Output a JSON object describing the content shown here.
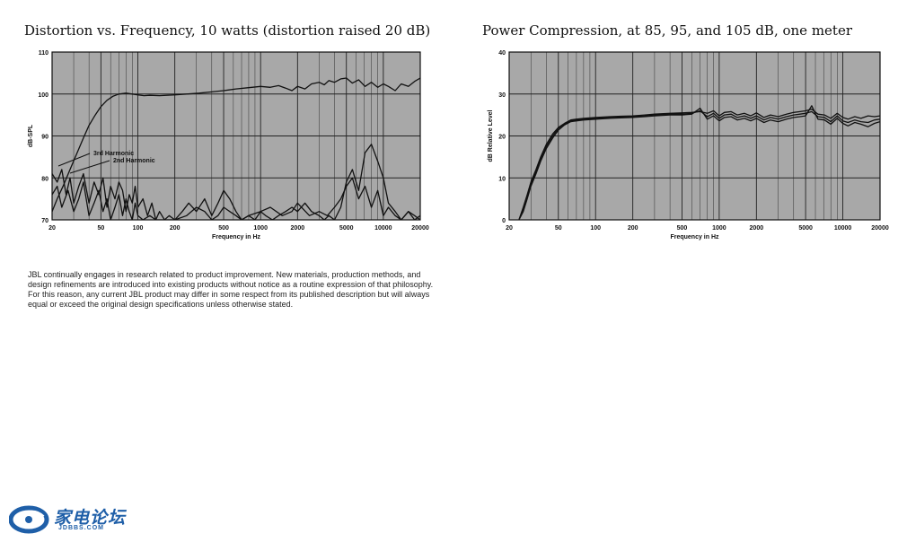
{
  "chart_data": [
    {
      "type": "line",
      "title": "Distortion vs. Frequency, 10 watts (distortion raised 20 dB)",
      "xlabel": "Frequency in Hz",
      "ylabel": "dB-SPL",
      "xscale": "log",
      "xlim": [
        20,
        20000
      ],
      "ylim": [
        70,
        110
      ],
      "xticks": [
        "20",
        "50",
        "100",
        "200",
        "500",
        "1000",
        "2000",
        "5000",
        "10000",
        "20000"
      ],
      "yticks": [
        "70",
        "80",
        "90",
        "100",
        "110"
      ],
      "grid": true,
      "background": "#a8a8a8",
      "annotations": [
        "3rd Harmonic",
        "2nd Harmonic"
      ],
      "series": [
        {
          "x": [
            20,
            22,
            25,
            28,
            32,
            36,
            40,
            45,
            50,
            56,
            63,
            70,
            80,
            90,
            100,
            112,
            125,
            150,
            200,
            250,
            315,
            400,
            500,
            630,
            800,
            1000,
            1200,
            1400,
            1600,
            1800,
            2000,
            2300,
            2600,
            3000,
            3300,
            3600,
            4000,
            4500,
            5000,
            5600,
            6300,
            7100,
            8000,
            9000,
            10000,
            11000,
            12500,
            14000,
            16000,
            18000,
            20000
          ],
          "values": [
            72,
            75,
            78.5,
            82,
            86,
            89.5,
            92.5,
            95,
            97,
            98.5,
            99.5,
            100,
            100.2,
            100,
            99.8,
            99.6,
            99.7,
            99.6,
            99.8,
            100,
            100.2,
            100.5,
            100.8,
            101.2,
            101.5,
            101.8,
            101.6,
            102,
            101.4,
            100.8,
            101.8,
            101.2,
            102.4,
            102.8,
            102.2,
            103.2,
            102.8,
            103.6,
            103.8,
            102.6,
            103.4,
            101.8,
            102.8,
            101.6,
            102.4,
            101.8,
            100.8,
            102.4,
            101.8,
            103,
            103.8
          ]
        },
        {
          "name": "3rd Harmonic",
          "x": [
            20,
            22,
            24,
            26,
            28,
            30,
            33,
            36,
            40,
            44,
            48,
            52,
            56,
            60,
            65,
            70,
            75,
            80,
            85,
            90,
            95,
            100,
            110,
            120,
            130,
            140,
            150,
            165,
            180,
            200,
            230,
            260,
            300,
            350,
            400,
            450,
            500,
            560,
            630,
            700,
            800,
            900,
            1000,
            1100,
            1250,
            1400,
            1600,
            1800,
            2000,
            2300,
            2600,
            3000,
            3300,
            3600,
            4000,
            4500,
            5000,
            5600,
            6300,
            7100,
            8000,
            9000,
            10000,
            11000,
            12500,
            14000,
            16000,
            18000,
            20000
          ],
          "values": [
            81,
            79,
            82,
            76,
            80,
            74,
            78,
            81,
            74,
            79,
            76,
            80,
            73,
            78,
            75,
            79,
            77,
            72,
            76,
            74,
            78,
            73,
            75,
            71,
            74,
            70,
            72,
            70,
            71,
            70,
            72,
            74,
            72,
            75,
            71,
            74,
            77,
            75,
            72,
            70,
            71,
            70,
            72,
            71,
            70,
            71,
            72,
            73,
            72,
            74,
            72,
            71,
            70,
            71,
            70,
            73,
            79,
            82,
            77,
            86,
            88,
            84,
            80,
            74,
            72,
            70,
            72,
            70,
            71
          ]
        },
        {
          "name": "2nd Harmonic",
          "x": [
            20,
            22,
            24,
            27,
            30,
            33,
            36,
            40,
            44,
            48,
            52,
            56,
            60,
            65,
            70,
            75,
            80,
            85,
            90,
            95,
            100,
            110,
            125,
            140,
            160,
            180,
            200,
            250,
            300,
            350,
            400,
            450,
            500,
            560,
            630,
            700,
            800,
            1000,
            1200,
            1500,
            1800,
            2000,
            2500,
            3000,
            3500,
            4000,
            4500,
            5000,
            5600,
            6300,
            7100,
            8000,
            9000,
            10000,
            11000,
            12500,
            14000,
            16000,
            18000,
            20000
          ],
          "values": [
            76,
            78,
            73,
            77,
            72,
            75,
            79,
            71,
            74,
            77,
            72,
            75,
            70,
            73,
            76,
            71,
            75,
            72,
            70,
            74,
            71,
            70,
            71,
            70,
            70,
            70,
            70,
            71,
            73,
            72,
            70,
            71,
            73,
            72,
            71,
            70,
            71,
            72,
            73,
            71,
            72,
            74,
            71,
            72,
            71,
            73,
            75,
            78,
            80,
            75,
            78,
            73,
            77,
            71,
            73,
            71,
            70,
            72,
            71,
            70
          ]
        }
      ]
    },
    {
      "type": "line",
      "title": "Power Compression, at 85, 95, and 105 dB, one meter",
      "xlabel": "Frequency in Hz",
      "ylabel": "dB Relative Level",
      "xscale": "log",
      "xlim": [
        20,
        20000
      ],
      "ylim": [
        0,
        40
      ],
      "xticks": [
        "20",
        "50",
        "100",
        "200",
        "500",
        "1000",
        "2000",
        "5000",
        "10000",
        "20000"
      ],
      "yticks": [
        "0",
        "10",
        "20",
        "30",
        "40"
      ],
      "grid": true,
      "background": "#a8a8a8",
      "series": [
        {
          "x": [
            24,
            26,
            28,
            30,
            33,
            36,
            40,
            45,
            50,
            56,
            63,
            70,
            80,
            100,
            130,
            160,
            200,
            250,
            300,
            400,
            500,
            600,
            700,
            800,
            900,
            1000,
            1100,
            1250,
            1400,
            1600,
            1800,
            2000,
            2300,
            2600,
            3000,
            3500,
            4000,
            4500,
            5000,
            5600,
            6300,
            7100,
            8000,
            9000,
            10000,
            11000,
            12500,
            14000,
            16000,
            18000,
            20000
          ],
          "values": [
            0,
            3,
            6,
            9,
            12,
            15,
            18,
            20.5,
            22,
            23,
            23.8,
            24,
            24.2,
            24.4,
            24.6,
            24.7,
            24.8,
            25,
            25.2,
            25.4,
            25.5,
            25.6,
            25.8,
            25.4,
            26,
            24.8,
            25.6,
            25.8,
            25,
            25.4,
            24.8,
            25.5,
            24.4,
            25,
            24.6,
            25.2,
            25.6,
            25.8,
            26,
            26.4,
            25.2,
            25,
            24.2,
            25.4,
            24.4,
            24,
            24.6,
            24.2,
            24.8,
            24.6,
            24.8
          ]
        },
        {
          "x": [
            24,
            26,
            28,
            30,
            33,
            36,
            40,
            45,
            50,
            56,
            63,
            70,
            80,
            100,
            130,
            160,
            200,
            250,
            300,
            400,
            500,
            600,
            700,
            800,
            900,
            1000,
            1100,
            1250,
            1400,
            1600,
            1800,
            2000,
            2300,
            2600,
            3000,
            3500,
            4000,
            4500,
            5000,
            5600,
            6300,
            7100,
            8000,
            9000,
            10000,
            11000,
            12500,
            14000,
            16000,
            18000,
            20000
          ],
          "values": [
            0,
            2.5,
            5.5,
            8.5,
            11.5,
            14.5,
            17.5,
            20,
            21.8,
            22.8,
            23.6,
            23.8,
            24,
            24.2,
            24.4,
            24.5,
            24.6,
            24.8,
            25,
            25.2,
            25.2,
            25.4,
            26,
            24.6,
            25.4,
            24.2,
            25,
            25.2,
            24.4,
            24.8,
            24.2,
            24.8,
            23.8,
            24.4,
            24,
            24.6,
            25,
            25.2,
            25.4,
            25.8,
            24.6,
            24.4,
            23.4,
            24.8,
            23.6,
            23.2,
            23.8,
            23.4,
            23.2,
            23.8,
            24
          ]
        },
        {
          "x": [
            24,
            26,
            28,
            30,
            33,
            36,
            40,
            45,
            50,
            56,
            63,
            70,
            80,
            100,
            130,
            160,
            200,
            250,
            300,
            400,
            500,
            600,
            700,
            800,
            900,
            1000,
            1100,
            1250,
            1400,
            1600,
            1800,
            2000,
            2300,
            2600,
            3000,
            3500,
            4000,
            4500,
            5000,
            5600,
            6300,
            7100,
            8000,
            9000,
            10000,
            11000,
            12500,
            14000,
            16000,
            18000,
            20000
          ],
          "values": [
            0,
            2,
            5,
            8,
            11,
            14,
            17,
            19.5,
            21.4,
            22.6,
            23.4,
            23.6,
            23.8,
            24,
            24.2,
            24.3,
            24.4,
            24.6,
            24.8,
            25,
            25,
            25.2,
            26.6,
            24,
            24.8,
            23.6,
            24.4,
            24.6,
            23.8,
            24.2,
            23.6,
            24.2,
            23.2,
            23.8,
            23.4,
            24,
            24.4,
            24.6,
            24.8,
            27.2,
            24,
            23.8,
            22.8,
            24.2,
            23,
            22.4,
            23.2,
            22.8,
            22.2,
            23,
            23.4
          ]
        }
      ]
    }
  ],
  "disclaimer": "JBL continually engages in research related to product improvement. New materials, production methods, and design refinements are introduced into existing products without notice as a routine expression of that philosophy. For this reason, any current JBL product may differ in some respect from its published description but will always equal or exceed the original design specifications unless otherwise stated.",
  "watermark": {
    "name_cn": "家电论坛",
    "domain": "JDBBS.COM",
    "color": "#1f5fa8"
  }
}
